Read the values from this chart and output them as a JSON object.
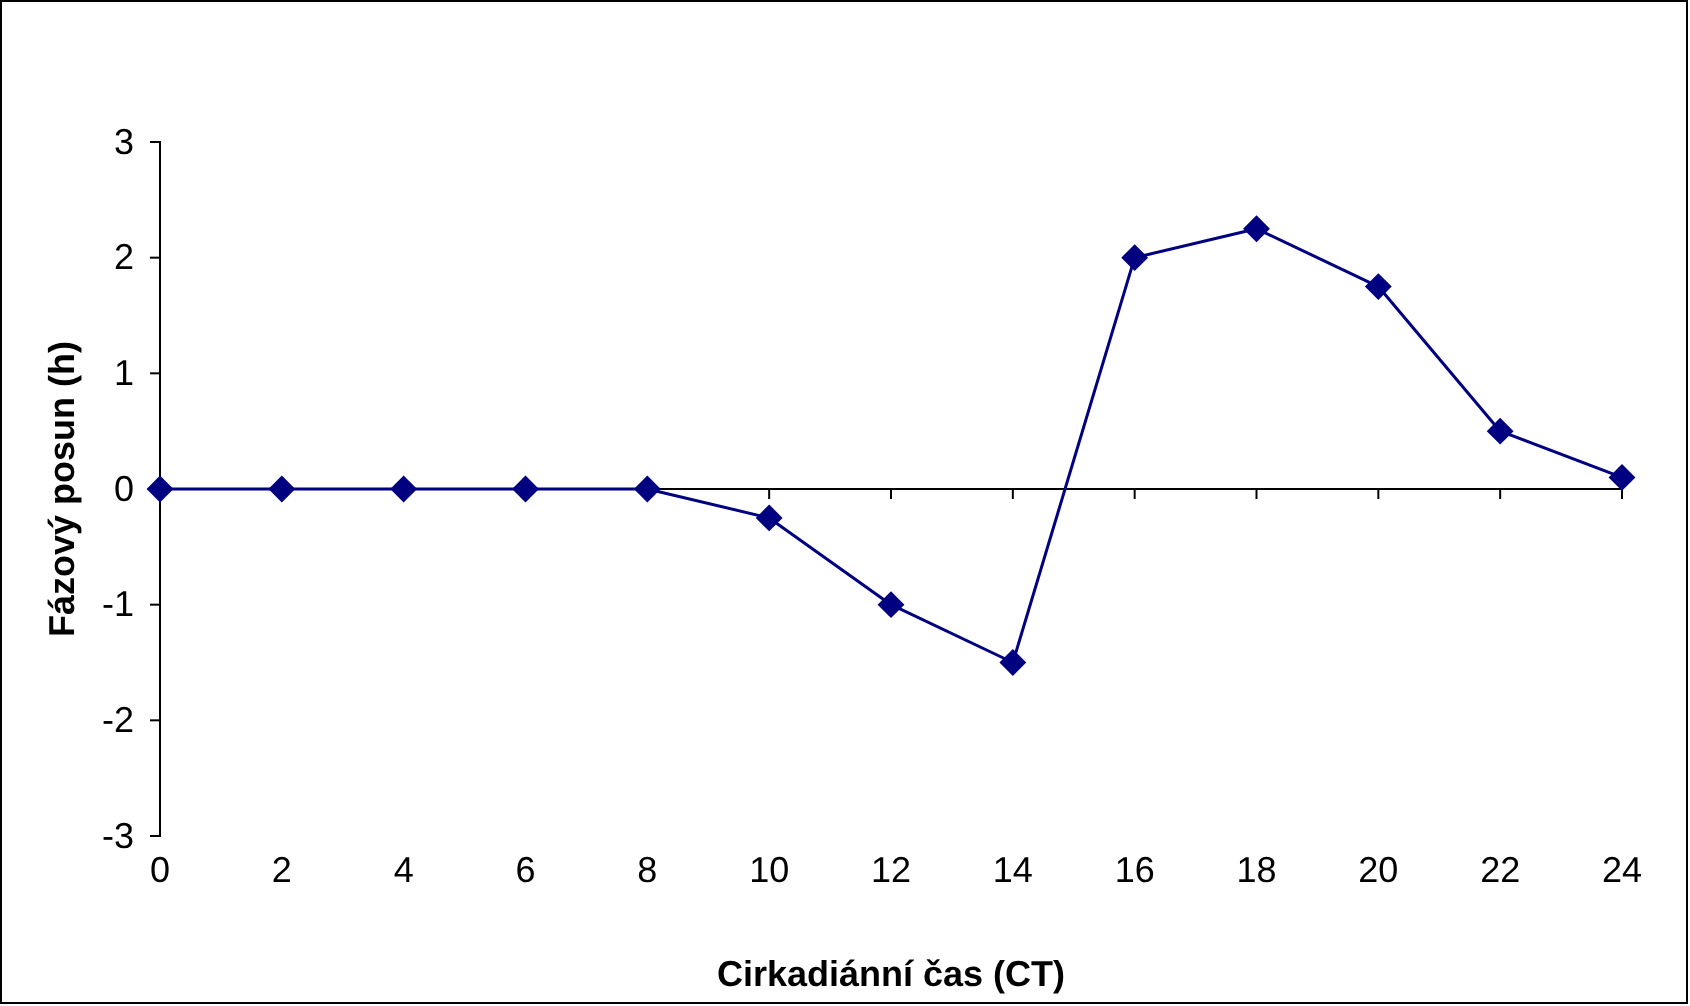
{
  "chart_data": {
    "type": "line",
    "xlabel": "Cirkadiánní čas (CT)",
    "ylabel": "Fázový posun (h)",
    "x": [
      0,
      2,
      4,
      6,
      8,
      10,
      12,
      14,
      16,
      18,
      20,
      22,
      24
    ],
    "series": [
      {
        "color": "#000080",
        "values": [
          0,
          0,
          0,
          0,
          0,
          -0.25,
          -1,
          -1.5,
          2,
          2.25,
          1.75,
          0.5,
          0.1
        ]
      }
    ],
    "xlim": [
      0,
      24
    ],
    "xticks": [
      0,
      2,
      4,
      6,
      8,
      10,
      12,
      14,
      16,
      18,
      20,
      22,
      24
    ],
    "ylim": [
      -3,
      3
    ],
    "yticks": [
      -3,
      -2,
      -1,
      0,
      1,
      2,
      3
    ],
    "grid": false,
    "marker": "diamond",
    "line_style": "solid"
  }
}
